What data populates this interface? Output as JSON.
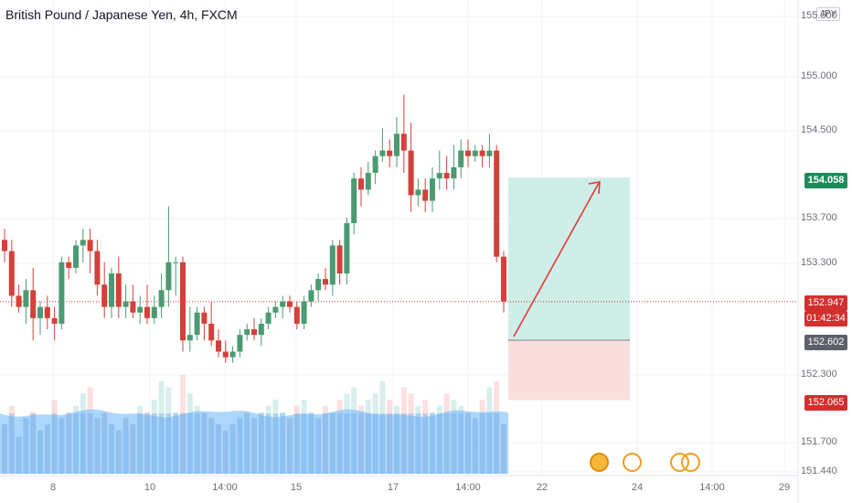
{
  "title": "British Pound / Japanese Yen, 4h, FXCM",
  "currency_button": "JPY",
  "colors": {
    "up": "#26a69a",
    "down": "#ef5350",
    "upFill": "#4b9a72",
    "downFill": "#d4403a",
    "volume": "#90caf9",
    "grid": "#f0f3fa",
    "profitZone": "#cfeee8",
    "lossZone": "#fadedd",
    "arrow": "#e53935",
    "current": "#d32f2f",
    "target": "#1e8c5a",
    "entry": "#5d606b"
  },
  "badges": {
    "target": "154.058",
    "current": "152.947",
    "countdown": "01:42:34",
    "entry": "152.602",
    "stop": "152.065"
  },
  "chart_data": {
    "type": "candlestick",
    "title": "British Pound / Japanese Yen, 4h, FXCM",
    "symbol": "GBPJPY",
    "interval": "4h",
    "source": "FXCM",
    "y_ticks": [
      "155.500",
      "155.000",
      "154.500",
      "153.700",
      "153.300",
      "152.300",
      "151.700",
      "151.440"
    ],
    "x_ticks": [
      "8",
      "10",
      "14:00",
      "15",
      "17",
      "14:00",
      "22",
      "24",
      "14:00",
      "29"
    ],
    "ylim": [
      151.44,
      155.6
    ],
    "candles": [
      [
        153.5,
        153.6,
        153.3,
        153.4
      ],
      [
        153.4,
        153.5,
        152.9,
        153.0
      ],
      [
        153.0,
        153.1,
        152.85,
        152.9
      ],
      [
        152.9,
        153.15,
        152.75,
        153.05
      ],
      [
        153.05,
        153.25,
        152.6,
        152.8
      ],
      [
        152.8,
        152.95,
        152.65,
        152.9
      ],
      [
        152.9,
        153.0,
        152.7,
        152.8
      ],
      [
        152.8,
        152.9,
        152.6,
        152.75
      ],
      [
        152.75,
        153.35,
        152.7,
        153.3
      ],
      [
        153.3,
        153.35,
        153.15,
        153.25
      ],
      [
        153.25,
        153.5,
        153.2,
        153.45
      ],
      [
        153.45,
        153.6,
        153.3,
        153.5
      ],
      [
        153.5,
        153.6,
        153.2,
        153.4
      ],
      [
        153.4,
        153.5,
        153.0,
        153.1
      ],
      [
        153.1,
        153.3,
        152.8,
        152.9
      ],
      [
        152.9,
        153.25,
        152.8,
        153.2
      ],
      [
        153.2,
        153.35,
        152.8,
        152.9
      ],
      [
        152.9,
        153.1,
        152.8,
        152.95
      ],
      [
        152.95,
        153.1,
        152.8,
        152.85
      ],
      [
        152.85,
        153.0,
        152.75,
        152.9
      ],
      [
        152.9,
        153.1,
        152.75,
        152.8
      ],
      [
        152.8,
        153.0,
        152.75,
        152.9
      ],
      [
        152.9,
        153.2,
        152.8,
        153.05
      ],
      [
        153.05,
        153.8,
        152.9,
        153.3
      ],
      [
        153.3,
        153.35,
        153.0,
        153.3
      ],
      [
        153.3,
        153.35,
        152.5,
        152.6
      ],
      [
        152.6,
        152.9,
        152.5,
        152.65
      ],
      [
        152.65,
        152.9,
        152.6,
        152.85
      ],
      [
        152.85,
        152.9,
        152.6,
        152.75
      ],
      [
        152.75,
        152.95,
        152.55,
        152.6
      ],
      [
        152.6,
        152.7,
        152.45,
        152.5
      ],
      [
        152.5,
        152.6,
        152.4,
        152.45
      ],
      [
        152.45,
        152.55,
        152.4,
        152.5
      ],
      [
        152.5,
        152.7,
        152.45,
        152.65
      ],
      [
        152.65,
        152.75,
        152.6,
        152.7
      ],
      [
        152.7,
        152.8,
        152.6,
        152.65
      ],
      [
        152.65,
        152.8,
        152.55,
        152.75
      ],
      [
        152.75,
        152.9,
        152.7,
        152.85
      ],
      [
        152.85,
        152.95,
        152.8,
        152.9
      ],
      [
        152.9,
        153.0,
        152.8,
        152.95
      ],
      [
        152.95,
        153.0,
        152.85,
        152.9
      ],
      [
        152.9,
        152.95,
        152.7,
        152.75
      ],
      [
        152.75,
        153.0,
        152.7,
        152.95
      ],
      [
        152.95,
        153.1,
        152.9,
        153.05
      ],
      [
        153.05,
        153.2,
        152.95,
        153.15
      ],
      [
        153.15,
        153.25,
        153.05,
        153.1
      ],
      [
        153.1,
        153.5,
        153.0,
        153.45
      ],
      [
        153.45,
        153.5,
        153.1,
        153.2
      ],
      [
        153.2,
        153.7,
        153.1,
        153.65
      ],
      [
        153.65,
        154.1,
        153.55,
        154.05
      ],
      [
        154.05,
        154.15,
        153.8,
        153.95
      ],
      [
        153.95,
        154.2,
        153.9,
        154.1
      ],
      [
        154.1,
        154.3,
        154.0,
        154.25
      ],
      [
        154.25,
        154.5,
        154.2,
        154.3
      ],
      [
        154.3,
        154.4,
        154.15,
        154.25
      ],
      [
        154.25,
        154.6,
        154.15,
        154.45
      ],
      [
        154.45,
        154.8,
        154.1,
        154.3
      ],
      [
        154.3,
        154.55,
        153.75,
        153.9
      ],
      [
        153.9,
        154.05,
        153.8,
        153.95
      ],
      [
        153.95,
        154.05,
        153.75,
        153.85
      ],
      [
        153.85,
        154.15,
        153.75,
        154.05
      ],
      [
        154.05,
        154.3,
        153.95,
        154.1
      ],
      [
        154.1,
        154.25,
        153.95,
        154.05
      ],
      [
        154.05,
        154.35,
        153.95,
        154.15
      ],
      [
        154.15,
        154.4,
        154.05,
        154.3
      ],
      [
        154.3,
        154.4,
        154.15,
        154.25
      ],
      [
        154.25,
        154.35,
        154.2,
        154.3
      ],
      [
        154.3,
        154.35,
        154.15,
        154.25
      ],
      [
        154.25,
        154.45,
        154.15,
        154.3
      ],
      [
        154.3,
        154.35,
        153.3,
        153.35
      ],
      [
        153.35,
        153.4,
        152.85,
        152.95
      ]
    ],
    "volume": [
      40,
      55,
      30,
      45,
      50,
      35,
      40,
      60,
      45,
      50,
      55,
      65,
      70,
      45,
      50,
      40,
      35,
      45,
      40,
      55,
      50,
      60,
      75,
      70,
      50,
      80,
      65,
      55,
      50,
      45,
      40,
      35,
      40,
      45,
      50,
      45,
      50,
      55,
      60,
      50,
      45,
      55,
      60,
      50,
      45,
      55,
      50,
      60,
      65,
      70,
      55,
      60,
      65,
      75,
      60,
      55,
      70,
      65,
      55,
      60,
      50,
      55,
      65,
      60,
      55,
      50,
      45,
      60,
      70,
      75,
      40
    ],
    "trade_setup": {
      "type": "long position",
      "entry": 152.602,
      "target": 154.058,
      "stop": 152.065,
      "current": 152.947
    }
  }
}
